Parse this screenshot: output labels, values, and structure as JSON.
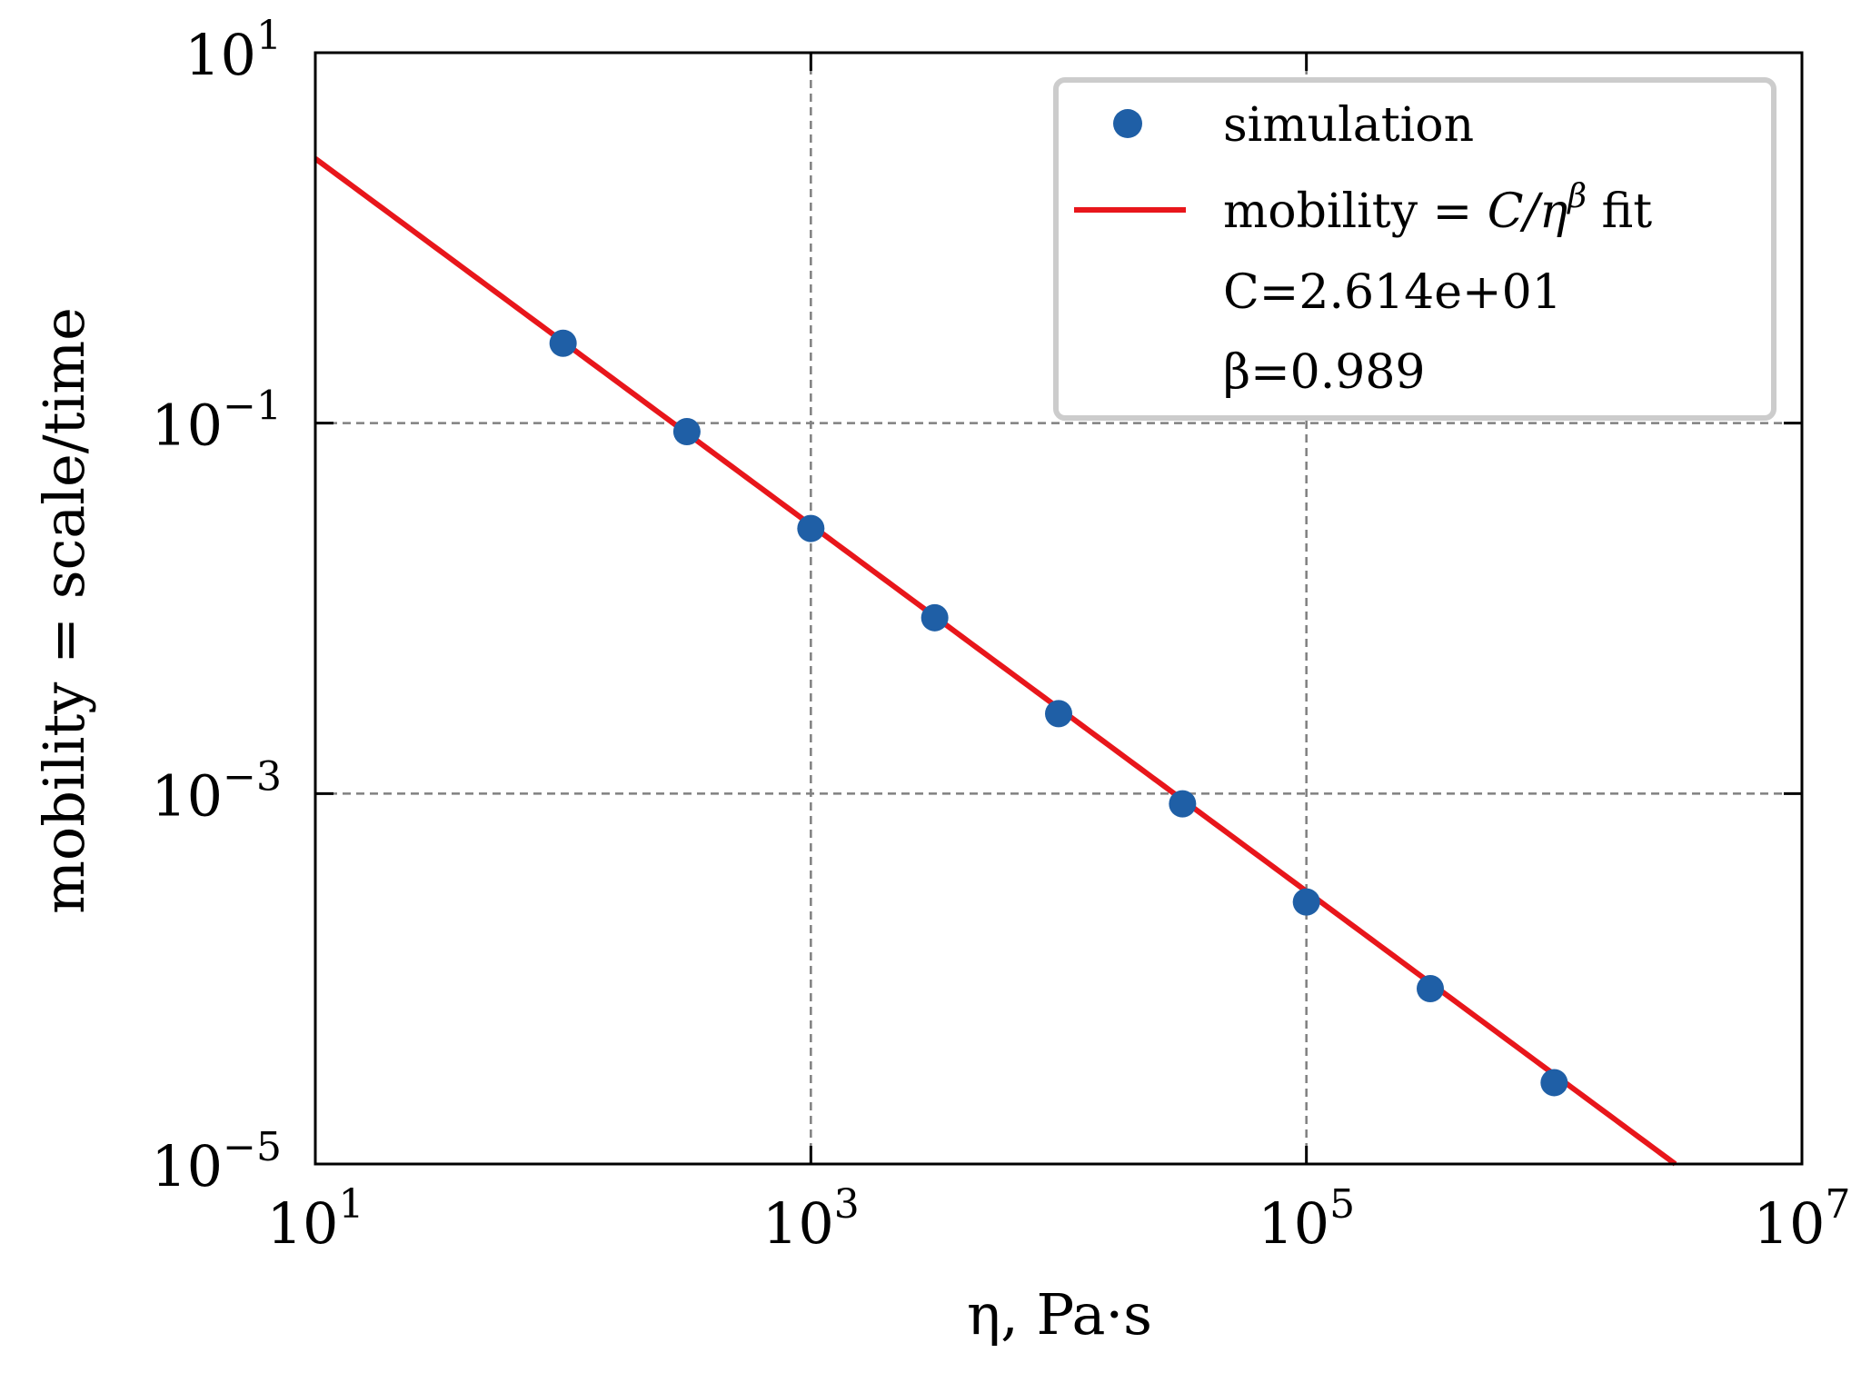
{
  "chart_data": {
    "type": "scatter",
    "xscale": "log",
    "yscale": "log",
    "xlim": [
      10,
      10000000
    ],
    "ylim": [
      1e-05,
      10
    ],
    "xlabel": "η, Pa·s",
    "ylabel": "mobility = scale/time",
    "grid": true,
    "legend_position": "top-right",
    "x_ticks": [
      {
        "value": 10,
        "base": "10",
        "exp": "1"
      },
      {
        "value": 1000,
        "base": "10",
        "exp": "3"
      },
      {
        "value": 100000,
        "base": "10",
        "exp": "5"
      },
      {
        "value": 10000000,
        "base": "10",
        "exp": "7"
      }
    ],
    "y_ticks": [
      {
        "value": 10,
        "base": "10",
        "exp": "1"
      },
      {
        "value": 0.1,
        "base": "10",
        "exp": "−1"
      },
      {
        "value": 0.001,
        "base": "10",
        "exp": "−3"
      },
      {
        "value": 1e-05,
        "base": "10",
        "exp": "−5"
      }
    ],
    "series": [
      {
        "name": "simulation",
        "kind": "scatter",
        "color": "#1f5fa6",
        "x": [
          100,
          316,
          1000,
          3162,
          10000,
          31623,
          100000,
          316228,
          1000000
        ],
        "y": [
          0.27,
          0.09,
          0.027,
          0.0089,
          0.0027,
          0.00088,
          0.00026,
          8.85e-05,
          2.75e-05
        ]
      },
      {
        "name": "mobility = C/η^β fit",
        "kind": "line",
        "color": "#e8161b",
        "C": 26.14,
        "beta": 0.989
      }
    ],
    "legend": {
      "entries": [
        {
          "label": "simulation",
          "marker": "dot",
          "color": "#1f5fa6"
        },
        {
          "label_main": "mobility = ",
          "label_C": "C",
          "label_slash": "/η",
          "label_sup": "β",
          "label_tail": " fit",
          "marker": "line",
          "color": "#e8161b"
        }
      ],
      "extra_lines": [
        "C=2.614e+01",
        "β=0.989"
      ]
    }
  }
}
